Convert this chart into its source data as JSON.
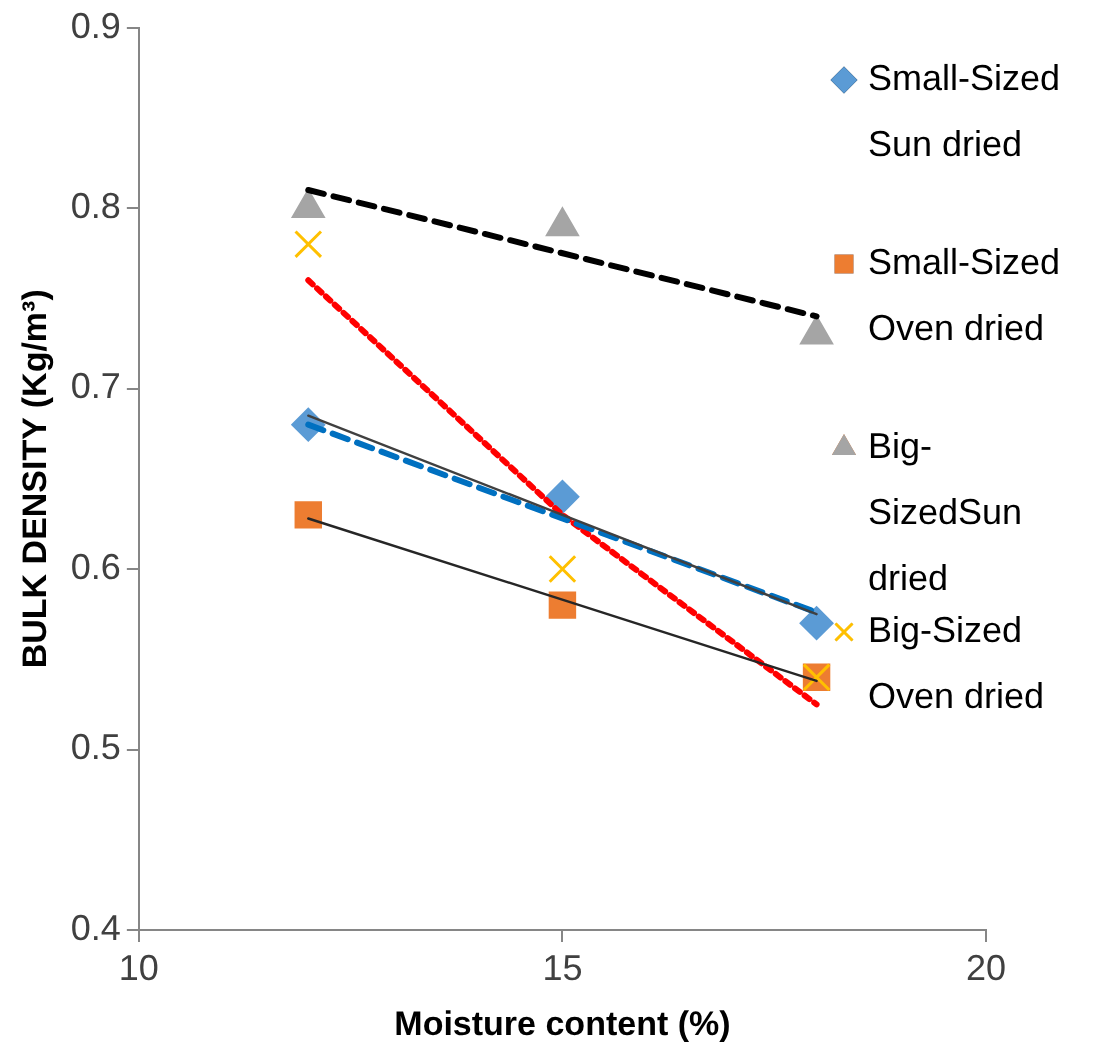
{
  "chart_data": {
    "type": "scatter",
    "xlabel": "Moisture content (%)",
    "ylabel": "BULK DENSITY (Kg/m³)",
    "xlim": [
      10,
      20
    ],
    "xticks": [
      10,
      15,
      20
    ],
    "ylim": [
      0.4,
      0.9
    ],
    "yticks": [
      0.4,
      0.5,
      0.6,
      0.7,
      0.8,
      0.9
    ],
    "grid": false,
    "legend": "right",
    "series": [
      {
        "name": "Small-Sized Sun dried",
        "marker": "diamond",
        "color": "#5b9bd5",
        "x": [
          12,
          15,
          18
        ],
        "values": [
          0.68,
          0.64,
          0.57
        ]
      },
      {
        "name": "Small-Sized Oven dried",
        "marker": "square",
        "color": "#ed7d31",
        "x": [
          12,
          15,
          18
        ],
        "values": [
          0.63,
          0.58,
          0.54
        ]
      },
      {
        "name": "Big-SizedSun dried",
        "marker": "triangle",
        "color": "#a5a5a5",
        "x": [
          12,
          15,
          18
        ],
        "values": [
          0.8,
          0.79,
          0.73
        ]
      },
      {
        "name": "Big-Sized Oven dried",
        "marker": "cross",
        "color": "#ffc000",
        "x": [
          12,
          15,
          18
        ],
        "values": [
          0.78,
          0.6,
          0.54
        ]
      },
      {
        "type": "line",
        "marker": "none",
        "line_style": "solid",
        "color": "#404040",
        "x": [
          12,
          18
        ],
        "values": [
          0.685,
          0.575
        ]
      },
      {
        "type": "line",
        "marker": "none",
        "line_style": "dashed",
        "color": "#0070c0",
        "x": [
          12,
          18
        ],
        "values": [
          0.68,
          0.576
        ]
      },
      {
        "type": "line",
        "marker": "none",
        "line_style": "solid",
        "color": "#262626",
        "x": [
          12,
          18
        ],
        "values": [
          0.628,
          0.538
        ]
      },
      {
        "type": "line",
        "marker": "none",
        "line_style": "dashed",
        "color": "#000000",
        "x": [
          12,
          18
        ],
        "values": [
          0.81,
          0.74
        ]
      },
      {
        "type": "line",
        "marker": "none",
        "line_style": "dotted",
        "color": "#ff0000",
        "x": [
          12,
          15,
          18
        ],
        "values": [
          0.76,
          0.63,
          0.525
        ]
      }
    ]
  }
}
